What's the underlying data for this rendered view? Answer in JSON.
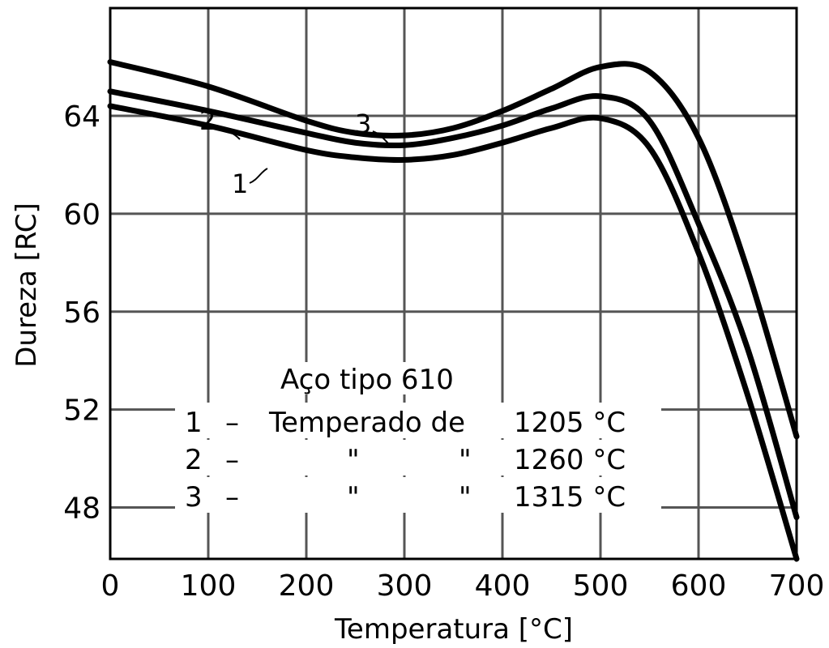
{
  "chart_data": {
    "type": "line",
    "title": "",
    "xlabel": "Temperatura [°C]",
    "ylabel": "Dureza [RC]",
    "xlim": [
      0,
      700
    ],
    "ylim": [
      45.9,
      68.4
    ],
    "xticks": [
      0,
      100,
      200,
      300,
      400,
      500,
      600,
      700
    ],
    "yticks": [
      48,
      52,
      56,
      60,
      64
    ],
    "grid": true,
    "legend": {
      "title": "Aço tipo 610",
      "entries": [
        {
          "number": "1",
          "dash": "–",
          "text": "Temperado de",
          "temp": "1205 °C"
        },
        {
          "number": "2",
          "dash": "–",
          "ditto1": "\"",
          "ditto2": "\"",
          "temp": "1260 °C"
        },
        {
          "number": "3",
          "dash": "–",
          "ditto1": "\"",
          "ditto2": "\"",
          "temp": "1315 °C"
        }
      ]
    },
    "series": [
      {
        "name": "1",
        "label": "1",
        "x": [
          0,
          100,
          200,
          250,
          300,
          350,
          400,
          450,
          500,
          550,
          600,
          650,
          700
        ],
        "y": [
          64.4,
          63.6,
          62.6,
          62.3,
          62.2,
          62.4,
          62.9,
          63.5,
          63.9,
          62.7,
          58.4,
          52.6,
          45.9
        ]
      },
      {
        "name": "2",
        "label": "2",
        "x": [
          0,
          100,
          200,
          250,
          300,
          350,
          400,
          450,
          500,
          550,
          600,
          650,
          700
        ],
        "y": [
          65.0,
          64.2,
          63.3,
          62.9,
          62.8,
          63.1,
          63.6,
          64.3,
          64.8,
          63.8,
          59.6,
          54.5,
          47.6
        ]
      },
      {
        "name": "3",
        "label": "3",
        "x": [
          0,
          100,
          200,
          250,
          300,
          350,
          400,
          450,
          500,
          550,
          600,
          650,
          700
        ],
        "y": [
          66.2,
          65.2,
          63.8,
          63.3,
          63.2,
          63.5,
          64.2,
          65.1,
          66.0,
          65.8,
          63.1,
          57.7,
          50.9
        ]
      }
    ],
    "line_color": "#000000",
    "grid_color": "#555555"
  }
}
